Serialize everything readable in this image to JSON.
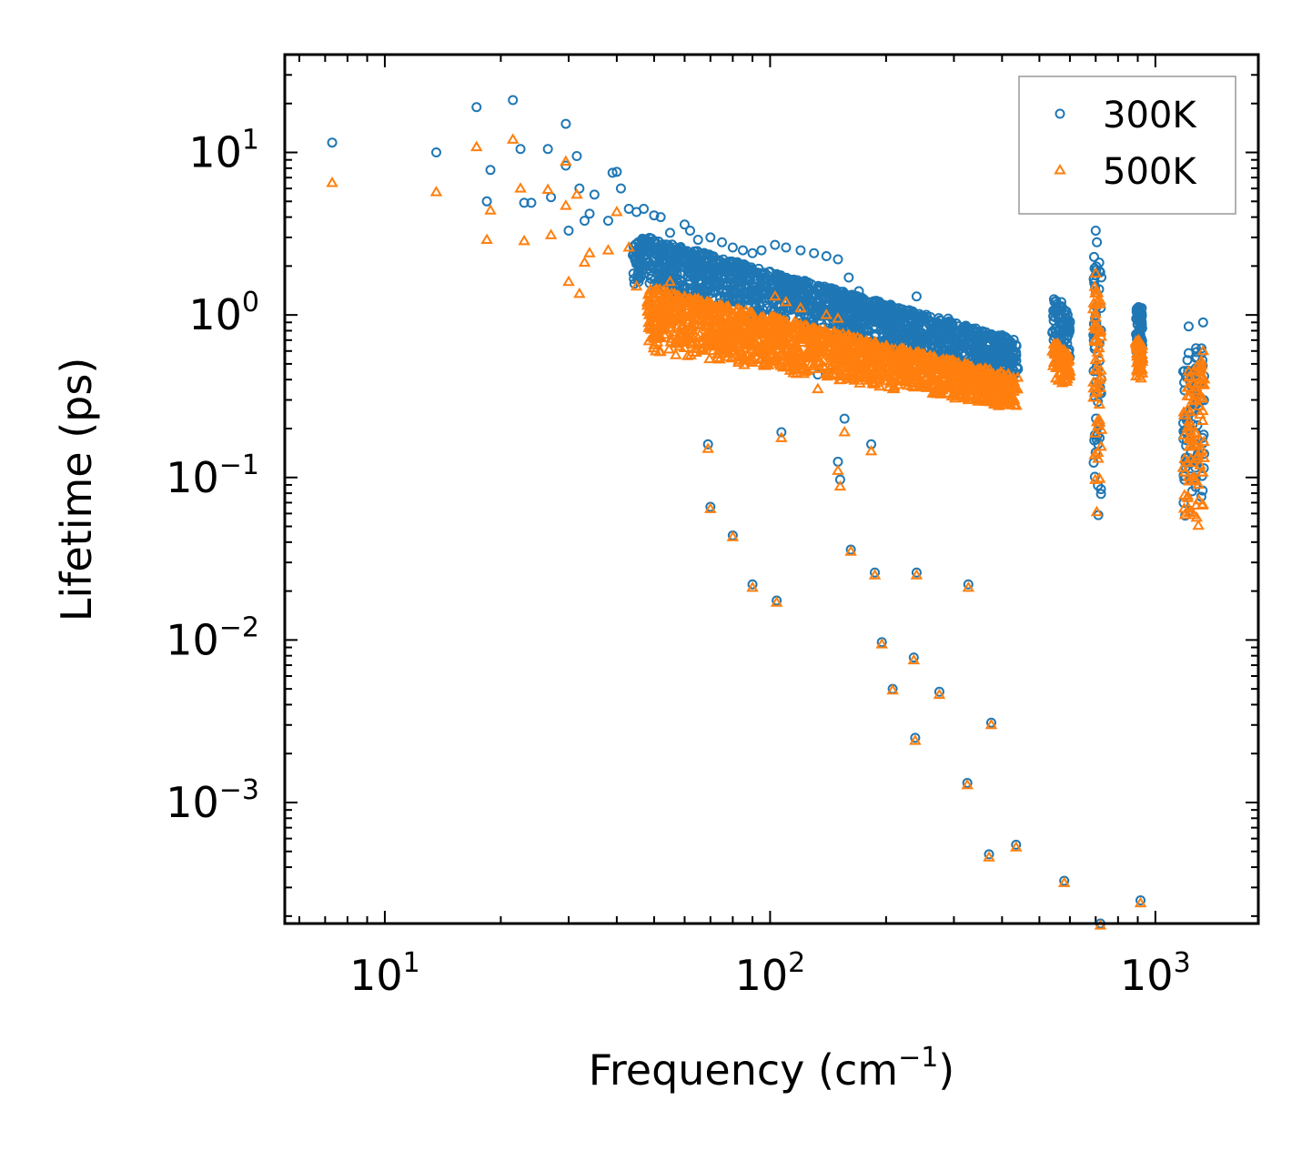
{
  "chart_data": {
    "type": "scatter",
    "title": "",
    "xlabel": "Frequency (cm",
    "xlabel_sup": "−1",
    "xlabel_end": ")",
    "ylabel": "Lifetime (ps)",
    "xscale": "log",
    "yscale": "log",
    "xlim": [
      5.5,
      1850
    ],
    "ylim": [
      0.00018,
      40
    ],
    "legend_position": "top-right",
    "x_ticks": [
      {
        "value": 10,
        "base": "10",
        "exp": "1"
      },
      {
        "value": 100,
        "base": "10",
        "exp": "2"
      },
      {
        "value": 1000,
        "base": "10",
        "exp": "3"
      }
    ],
    "y_ticks": [
      {
        "value": 10,
        "base": "10",
        "exp": "1"
      },
      {
        "value": 1,
        "base": "10",
        "exp": "0"
      },
      {
        "value": 0.1,
        "base": "10",
        "exp": "−1"
      },
      {
        "value": 0.01,
        "base": "10",
        "exp": "−2"
      },
      {
        "value": 0.001,
        "base": "10",
        "exp": "−3"
      }
    ],
    "series": [
      {
        "name": "300K",
        "marker": "circle",
        "color": "#1f77b4",
        "points": [
          [
            7.3,
            11.5
          ],
          [
            13.6,
            10
          ],
          [
            17.3,
            19
          ],
          [
            18.4,
            5
          ],
          [
            18.8,
            7.8
          ],
          [
            21.5,
            21
          ],
          [
            22.5,
            10.5
          ],
          [
            23,
            4.9
          ],
          [
            24,
            4.9
          ],
          [
            26.5,
            10.5
          ],
          [
            27,
            5.3
          ],
          [
            29.5,
            15
          ],
          [
            29.5,
            8.3
          ],
          [
            30,
            3.3
          ],
          [
            31.5,
            9.5
          ],
          [
            32,
            6
          ],
          [
            33,
            3.8
          ],
          [
            34,
            4.2
          ],
          [
            35,
            5.5
          ],
          [
            38,
            3.8
          ],
          [
            39,
            7.5
          ],
          [
            40,
            7.6
          ],
          [
            41,
            6
          ],
          [
            43,
            4.5
          ],
          [
            45,
            4.3
          ],
          [
            47,
            4.5
          ],
          [
            48,
            2.2
          ],
          [
            50,
            4.1
          ],
          [
            52,
            4.0
          ],
          [
            55,
            3.2
          ],
          [
            60,
            3.6
          ],
          [
            62,
            3.3
          ],
          [
            65,
            2.9
          ],
          [
            70,
            3.0
          ],
          [
            75,
            2.8
          ],
          [
            80,
            2.6
          ],
          [
            85,
            2.5
          ],
          [
            90,
            2.4
          ],
          [
            95,
            2.5
          ],
          [
            103,
            2.7
          ],
          [
            110,
            2.6
          ],
          [
            120,
            2.5
          ],
          [
            130,
            2.4
          ],
          [
            140,
            2.3
          ],
          [
            150,
            2.2
          ],
          [
            160,
            1.7
          ],
          [
            170,
            1.4
          ],
          [
            180,
            1.2
          ],
          [
            190,
            1.0
          ],
          [
            210,
            1.1
          ],
          [
            240,
            1.3
          ],
          [
            290,
            0.95
          ],
          [
            340,
            0.8
          ],
          [
            400,
            0.75
          ],
          [
            430,
            0.6
          ],
          [
            570,
            1.2
          ],
          [
            600,
            0.9
          ],
          [
            700,
            3.3
          ],
          [
            705,
            2.8
          ],
          [
            715,
            2.1
          ],
          [
            905,
            1.1
          ],
          [
            912,
            0.9
          ],
          [
            1220,
            0.85
          ],
          [
            1280,
            0.55
          ],
          [
            1330,
            0.9
          ],
          [
            133,
            0.43
          ],
          [
            156,
            0.23
          ],
          [
            150,
            0.125
          ],
          [
            152,
            0.097
          ],
          [
            183,
            0.16
          ],
          [
            107,
            0.19
          ],
          [
            69,
            0.16
          ],
          [
            70,
            0.066
          ],
          [
            80,
            0.044
          ],
          [
            90,
            0.022
          ],
          [
            104,
            0.0175
          ],
          [
            162,
            0.036
          ],
          [
            187,
            0.026
          ],
          [
            240,
            0.026
          ],
          [
            327,
            0.022
          ],
          [
            195,
            0.0097
          ],
          [
            208,
            0.005
          ],
          [
            236,
            0.0078
          ],
          [
            275,
            0.0048
          ],
          [
            375,
            0.0031
          ],
          [
            238,
            0.0025
          ],
          [
            325,
            0.00132
          ],
          [
            370,
            0.00048
          ],
          [
            435,
            0.00055
          ],
          [
            580,
            0.00033
          ],
          [
            720,
            0.00018
          ],
          [
            915,
            0.00025
          ]
        ]
      },
      {
        "name": "500K",
        "marker": "triangle",
        "color": "#ff7f0e",
        "points": [
          [
            7.3,
            6.5
          ],
          [
            13.6,
            5.7
          ],
          [
            17.3,
            10.8
          ],
          [
            18.4,
            2.9
          ],
          [
            18.8,
            4.4
          ],
          [
            21.5,
            12
          ],
          [
            22.5,
            6
          ],
          [
            23,
            2.85
          ],
          [
            26.5,
            5.9
          ],
          [
            27,
            3.1
          ],
          [
            29.5,
            8.8
          ],
          [
            29.5,
            4.7
          ],
          [
            30,
            1.6
          ],
          [
            31.5,
            5.5
          ],
          [
            32,
            1.35
          ],
          [
            33,
            2.1
          ],
          [
            34,
            2.4
          ],
          [
            38,
            2.5
          ],
          [
            40,
            4.3
          ],
          [
            43,
            2.6
          ],
          [
            45,
            1.5
          ],
          [
            48,
            1.2
          ],
          [
            50,
            1.4
          ],
          [
            55,
            1.6
          ],
          [
            60,
            1.3
          ],
          [
            70,
            1.15
          ],
          [
            80,
            1.0
          ],
          [
            90,
            0.9
          ],
          [
            103,
            1.3
          ],
          [
            110,
            1.2
          ],
          [
            120,
            1.1
          ],
          [
            140,
            1.0
          ],
          [
            150,
            0.95
          ],
          [
            170,
            0.6
          ],
          [
            190,
            0.5
          ],
          [
            210,
            0.55
          ],
          [
            240,
            0.55
          ],
          [
            290,
            0.45
          ],
          [
            340,
            0.4
          ],
          [
            400,
            0.35
          ],
          [
            430,
            0.3
          ],
          [
            570,
            0.55
          ],
          [
            600,
            0.45
          ],
          [
            700,
            1.8
          ],
          [
            705,
            1.2
          ],
          [
            905,
            0.7
          ],
          [
            1220,
            0.45
          ],
          [
            1330,
            0.6
          ],
          [
            133,
            0.35
          ],
          [
            156,
            0.19
          ],
          [
            150,
            0.11
          ],
          [
            152,
            0.088
          ],
          [
            183,
            0.145
          ],
          [
            107,
            0.175
          ],
          [
            69,
            0.15
          ],
          [
            70,
            0.064
          ],
          [
            80,
            0.043
          ],
          [
            90,
            0.021
          ],
          [
            104,
            0.017
          ],
          [
            162,
            0.035
          ],
          [
            187,
            0.025
          ],
          [
            240,
            0.025
          ],
          [
            327,
            0.021
          ],
          [
            195,
            0.0094
          ],
          [
            208,
            0.0049
          ],
          [
            236,
            0.0075
          ],
          [
            275,
            0.0046
          ],
          [
            375,
            0.003
          ],
          [
            238,
            0.0024
          ],
          [
            325,
            0.00128
          ],
          [
            370,
            0.00046
          ],
          [
            435,
            0.00053
          ],
          [
            580,
            0.00032
          ],
          [
            720,
            0.000175
          ],
          [
            915,
            0.00024
          ]
        ]
      }
    ],
    "dense_bands": [
      {
        "series": "300K",
        "x_from": 44,
        "x_to": 440,
        "y_top_from": 3.2,
        "y_top_to": 0.7,
        "y_bot_from": 1.5,
        "y_bot_to": 0.4
      },
      {
        "series": "500K",
        "x_from": 48,
        "x_to": 440,
        "y_top_from": 1.5,
        "y_top_to": 0.42,
        "y_bot_from": 0.6,
        "y_bot_to": 0.26
      },
      {
        "series": "300K",
        "x_from": 540,
        "x_to": 600,
        "y_top_from": 1.3,
        "y_top_to": 1.0,
        "y_bot_from": 0.55,
        "y_bot_to": 0.5
      },
      {
        "series": "500K",
        "x_from": 540,
        "x_to": 600,
        "y_top_from": 0.7,
        "y_top_to": 0.6,
        "y_bot_from": 0.4,
        "y_bot_to": 0.35
      },
      {
        "series": "300K",
        "x_from": 890,
        "x_to": 925,
        "y_top_from": 1.15,
        "y_top_to": 1.1,
        "y_bot_from": 0.55,
        "y_bot_to": 0.5
      },
      {
        "series": "500K",
        "x_from": 890,
        "x_to": 925,
        "y_top_from": 0.7,
        "y_top_to": 0.65,
        "y_bot_from": 0.4,
        "y_bot_to": 0.38
      },
      {
        "series": "300K",
        "x_from": 690,
        "x_to": 725,
        "y_top_from": 2.5,
        "y_top_to": 2.0,
        "y_bot_from": 0.06,
        "y_bot_to": 0.055
      },
      {
        "series": "500K",
        "x_from": 690,
        "x_to": 725,
        "y_top_from": 1.7,
        "y_top_to": 1.2,
        "y_bot_from": 0.05,
        "y_bot_to": 0.05
      },
      {
        "series": "300K",
        "x_from": 1180,
        "x_to": 1340,
        "y_top_from": 0.55,
        "y_top_to": 0.7,
        "y_bot_from": 0.055,
        "y_bot_to": 0.065
      },
      {
        "series": "500K",
        "x_from": 1180,
        "x_to": 1340,
        "y_top_from": 0.4,
        "y_top_to": 0.55,
        "y_bot_from": 0.045,
        "y_bot_to": 0.05
      }
    ]
  }
}
